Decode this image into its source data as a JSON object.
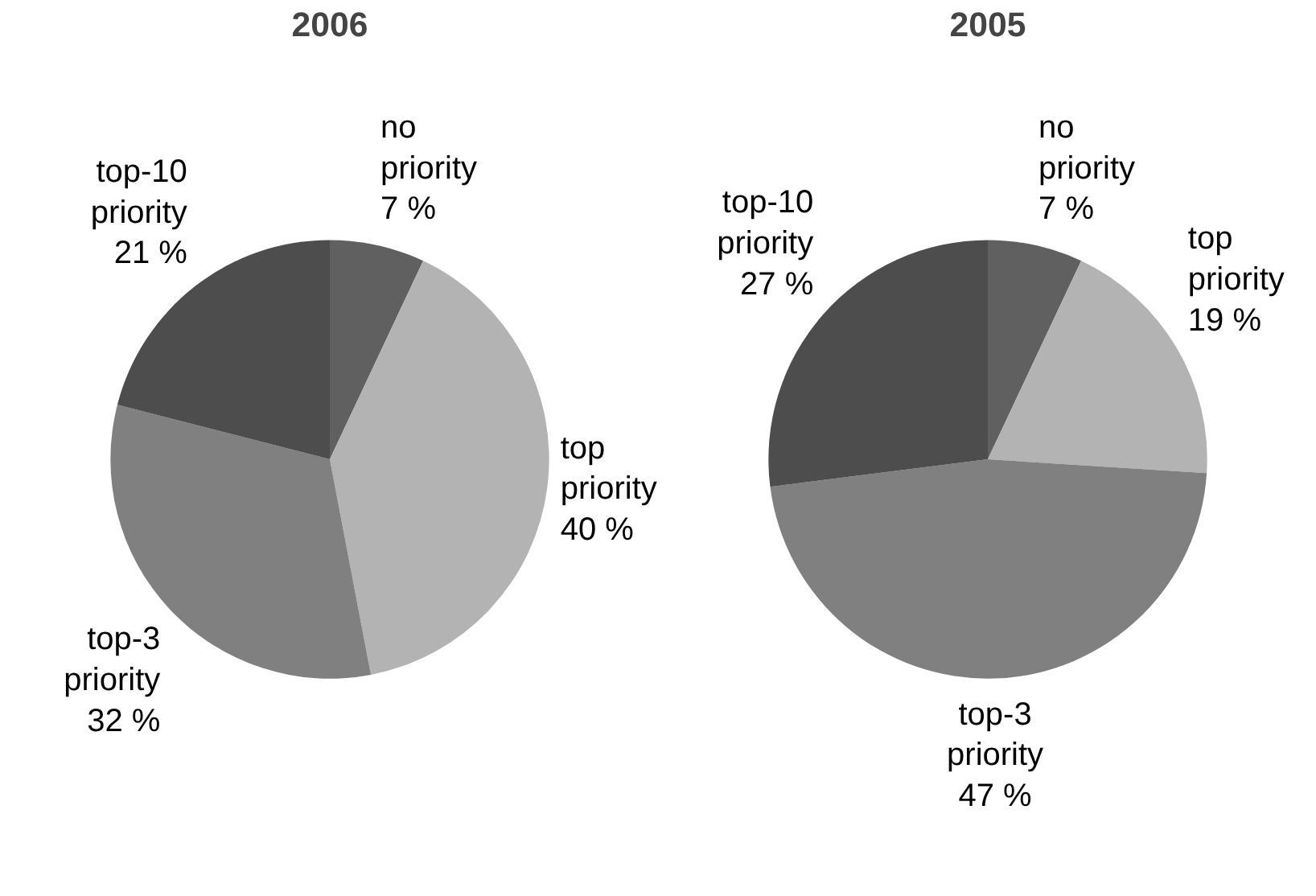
{
  "chart_data": [
    {
      "type": "pie",
      "title": "2006",
      "categories": [
        "no priority",
        "top priority",
        "top-3 priority",
        "top-10 priority"
      ],
      "values": [
        7,
        40,
        32,
        21
      ],
      "colors": [
        "#606060",
        "#b3b3b3",
        "#808080",
        "#4d4d4d"
      ],
      "value_labels": [
        "7 %",
        "40 %",
        "32 %",
        "21 %"
      ]
    },
    {
      "type": "pie",
      "title": "2005",
      "categories": [
        "no priority",
        "top priority",
        "top-3 priority",
        "top-10 priority"
      ],
      "values": [
        7,
        19,
        47,
        27
      ],
      "colors": [
        "#606060",
        "#b3b3b3",
        "#808080",
        "#4d4d4d"
      ],
      "value_labels": [
        "7 %",
        "19 %",
        "47 %",
        "27 %"
      ]
    }
  ]
}
